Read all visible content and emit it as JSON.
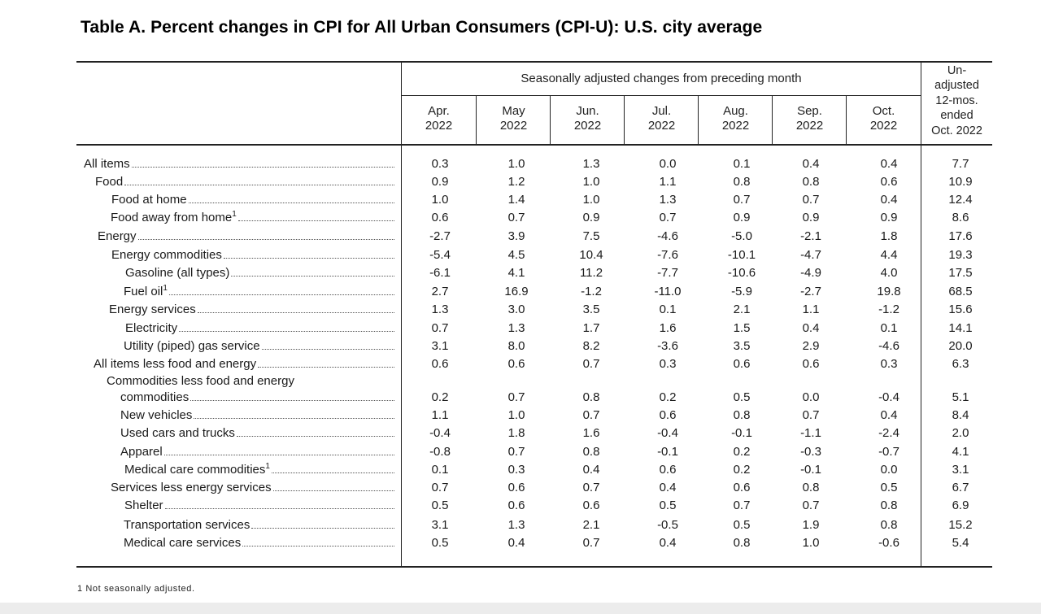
{
  "title": "Table A. Percent changes in CPI for All Urban Consumers (CPI-U): U.S. city average",
  "group_header": "Seasonally adjusted changes from preceding month",
  "unadjusted_header": [
    "Un-",
    "adjusted",
    "12-mos.",
    "ended",
    "Oct. 2022"
  ],
  "columns": [
    {
      "month": "Apr.",
      "year": "2022"
    },
    {
      "month": "May",
      "year": "2022"
    },
    {
      "month": "Jun.",
      "year": "2022"
    },
    {
      "month": "Jul.",
      "year": "2022"
    },
    {
      "month": "Aug.",
      "year": "2022"
    },
    {
      "month": "Sep.",
      "year": "2022"
    },
    {
      "month": "Oct.",
      "year": "2022"
    }
  ],
  "rows": [
    {
      "label": "All items",
      "sup": "",
      "values": [
        "0.3",
        "1.0",
        "1.3",
        "0.0",
        "0.1",
        "0.4",
        "0.4",
        "7.7"
      ]
    },
    {
      "label": "Food",
      "sup": "",
      "values": [
        "0.9",
        "1.2",
        "1.0",
        "1.1",
        "0.8",
        "0.8",
        "0.6",
        "10.9"
      ]
    },
    {
      "label": "Food at home",
      "sup": "",
      "values": [
        "1.0",
        "1.4",
        "1.0",
        "1.3",
        "0.7",
        "0.7",
        "0.4",
        "12.4"
      ]
    },
    {
      "label": "Food away from home",
      "sup": "1",
      "values": [
        "0.6",
        "0.7",
        "0.9",
        "0.7",
        "0.9",
        "0.9",
        "0.9",
        "8.6"
      ]
    },
    {
      "label": "Energy",
      "sup": "",
      "values": [
        "-2.7",
        "3.9",
        "7.5",
        "-4.6",
        "-5.0",
        "-2.1",
        "1.8",
        "17.6"
      ]
    },
    {
      "label": "Energy commodities",
      "sup": "",
      "values": [
        "-5.4",
        "4.5",
        "10.4",
        "-7.6",
        "-10.1",
        "-4.7",
        "4.4",
        "19.3"
      ]
    },
    {
      "label": "Gasoline (all types)",
      "sup": "",
      "values": [
        "-6.1",
        "4.1",
        "11.2",
        "-7.7",
        "-10.6",
        "-4.9",
        "4.0",
        "17.5"
      ]
    },
    {
      "label": "Fuel oil",
      "sup": "1",
      "values": [
        "2.7",
        "16.9",
        "-1.2",
        "-11.0",
        "-5.9",
        "-2.7",
        "19.8",
        "68.5"
      ]
    },
    {
      "label": "Energy services",
      "sup": "",
      "values": [
        "1.3",
        "3.0",
        "3.5",
        "0.1",
        "2.1",
        "1.1",
        "-1.2",
        "15.6"
      ]
    },
    {
      "label": "Electricity",
      "sup": "",
      "values": [
        "0.7",
        "1.3",
        "1.7",
        "1.6",
        "1.5",
        "0.4",
        "0.1",
        "14.1"
      ]
    },
    {
      "label": "Utility (piped) gas service",
      "sup": "",
      "values": [
        "3.1",
        "8.0",
        "8.2",
        "-3.6",
        "3.5",
        "2.9",
        "-4.6",
        "20.0"
      ]
    },
    {
      "label": "All items less food and energy",
      "sup": "",
      "values": [
        "0.6",
        "0.6",
        "0.7",
        "0.3",
        "0.6",
        "0.6",
        "0.3",
        "6.3"
      ]
    },
    {
      "label": "Commodities less food and energy",
      "sup": "",
      "values": []
    },
    {
      "label": "commodities",
      "sup": "",
      "values": [
        "0.2",
        "0.7",
        "0.8",
        "0.2",
        "0.5",
        "0.0",
        "-0.4",
        "5.1"
      ]
    },
    {
      "label": "New vehicles",
      "sup": "",
      "values": [
        "1.1",
        "1.0",
        "0.7",
        "0.6",
        "0.8",
        "0.7",
        "0.4",
        "8.4"
      ]
    },
    {
      "label": "Used cars and trucks",
      "sup": "",
      "values": [
        "-0.4",
        "1.8",
        "1.6",
        "-0.4",
        "-0.1",
        "-1.1",
        "-2.4",
        "2.0"
      ]
    },
    {
      "label": "Apparel",
      "sup": "",
      "values": [
        "-0.8",
        "0.7",
        "0.8",
        "-0.1",
        "0.2",
        "-0.3",
        "-0.7",
        "4.1"
      ]
    },
    {
      "label": "Medical care commodities",
      "sup": "1",
      "values": [
        "0.1",
        "0.3",
        "0.4",
        "0.6",
        "0.2",
        "-0.1",
        "0.0",
        "3.1"
      ]
    },
    {
      "label": "Services less energy services",
      "sup": "",
      "values": [
        "0.7",
        "0.6",
        "0.7",
        "0.4",
        "0.6",
        "0.8",
        "0.5",
        "6.7"
      ]
    },
    {
      "label": "Shelter",
      "sup": "",
      "values": [
        "0.5",
        "0.6",
        "0.6",
        "0.5",
        "0.7",
        "0.7",
        "0.8",
        "6.9"
      ]
    },
    {
      "label": "Transportation services",
      "sup": "",
      "values": [
        "3.1",
        "1.3",
        "2.1",
        "-0.5",
        "0.5",
        "1.9",
        "0.8",
        "15.2"
      ]
    },
    {
      "label": "Medical care services",
      "sup": "",
      "values": [
        "0.5",
        "0.4",
        "0.7",
        "0.4",
        "0.8",
        "1.0",
        "-0.6",
        "5.4"
      ]
    }
  ],
  "footnote": "1 Not seasonally adjusted."
}
